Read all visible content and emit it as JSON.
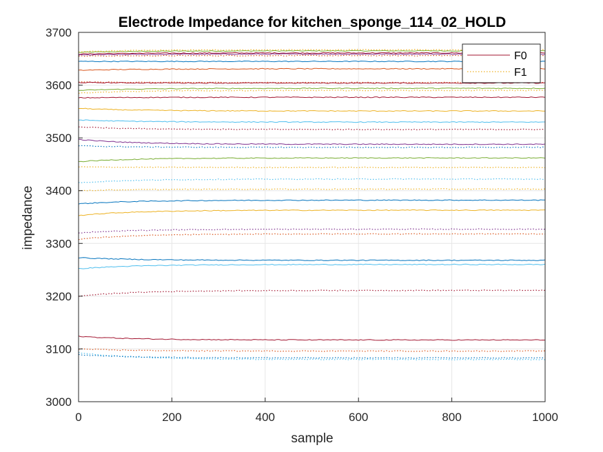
{
  "chart_data": {
    "type": "line",
    "title": "Electrode Impedance for kitchen_sponge_114_02_HOLD",
    "xlabel": "sample",
    "ylabel": "impedance",
    "xlim": [
      0,
      1000
    ],
    "ylim": [
      3000,
      3700
    ],
    "xticks": [
      0,
      200,
      400,
      600,
      800,
      1000
    ],
    "yticks": [
      3000,
      3100,
      3200,
      3300,
      3400,
      3500,
      3600,
      3700
    ],
    "grid": true,
    "legend_position": "top-right",
    "legend": [
      {
        "name": "F0",
        "color": "#a2142f",
        "style": "solid"
      },
      {
        "name": "F1",
        "color": "#edb120",
        "style": "dotted"
      }
    ],
    "series": [
      {
        "color": "#77ac30",
        "style": "solid",
        "start": 3662,
        "end": 3665
      },
      {
        "color": "#edb120",
        "style": "dotted",
        "start": 3663,
        "end": 3667
      },
      {
        "color": "#a2142f",
        "style": "solid",
        "start": 3659,
        "end": 3661
      },
      {
        "color": "#7e2f8e",
        "style": "solid",
        "start": 3657,
        "end": 3659
      },
      {
        "color": "#d95319",
        "style": "dotted",
        "start": 3655,
        "end": 3656
      },
      {
        "color": "#0072bd",
        "style": "solid",
        "start": 3645,
        "end": 3645
      },
      {
        "color": "#d95319",
        "style": "solid",
        "start": 3628,
        "end": 3631
      },
      {
        "color": "#d95319",
        "style": "dotted",
        "start": 3606,
        "end": 3605
      },
      {
        "color": "#a2142f",
        "style": "solid",
        "start": 3605,
        "end": 3604
      },
      {
        "color": "#77ac30",
        "style": "solid",
        "start": 3590,
        "end": 3594
      },
      {
        "color": "#edb120",
        "style": "dotted",
        "start": 3585,
        "end": 3590
      },
      {
        "color": "#a2142f",
        "style": "solid",
        "start": 3576,
        "end": 3577
      },
      {
        "color": "#edb120",
        "style": "solid",
        "start": 3556,
        "end": 3551
      },
      {
        "color": "#4dbeee",
        "style": "solid",
        "start": 3534,
        "end": 3530
      },
      {
        "color": "#a2142f",
        "style": "dotted",
        "start": 3521,
        "end": 3516
      },
      {
        "color": "#7e2f8e",
        "style": "solid",
        "start": 3497,
        "end": 3488
      },
      {
        "color": "#0072bd",
        "style": "dotted",
        "start": 3485,
        "end": 3482
      },
      {
        "color": "#77ac30",
        "style": "solid",
        "start": 3455,
        "end": 3462
      },
      {
        "color": "#edb120",
        "style": "dotted",
        "start": 3445,
        "end": 3444
      },
      {
        "color": "#4dbeee",
        "style": "dotted",
        "start": 3415,
        "end": 3422
      },
      {
        "color": "#edb120",
        "style": "dotted",
        "start": 3400,
        "end": 3403
      },
      {
        "color": "#0072bd",
        "style": "solid",
        "start": 3375,
        "end": 3382
      },
      {
        "color": "#edb120",
        "style": "solid",
        "start": 3353,
        "end": 3363
      },
      {
        "color": "#7e2f8e",
        "style": "dotted",
        "start": 3320,
        "end": 3327
      },
      {
        "color": "#d95319",
        "style": "dotted",
        "start": 3308,
        "end": 3318
      },
      {
        "color": "#0072bd",
        "style": "solid",
        "start": 3273,
        "end": 3268
      },
      {
        "color": "#4dbeee",
        "style": "solid",
        "start": 3252,
        "end": 3260
      },
      {
        "color": "#a2142f",
        "style": "dotted",
        "start": 3200,
        "end": 3211
      },
      {
        "color": "#a2142f",
        "style": "solid",
        "start": 3124,
        "end": 3117
      },
      {
        "color": "#d95319",
        "style": "dotted",
        "start": 3100,
        "end": 3096
      },
      {
        "color": "#4dbeee",
        "style": "dotted",
        "start": 3093,
        "end": 3080
      },
      {
        "color": "#0072bd",
        "style": "dotted",
        "start": 3089,
        "end": 3083
      }
    ]
  }
}
